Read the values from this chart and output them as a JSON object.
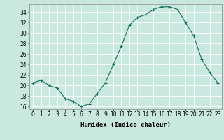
{
  "x": [
    0,
    1,
    2,
    3,
    4,
    5,
    6,
    7,
    8,
    9,
    10,
    11,
    12,
    13,
    14,
    15,
    16,
    17,
    18,
    19,
    20,
    21,
    22,
    23
  ],
  "y": [
    20.5,
    21.0,
    20.0,
    19.5,
    17.5,
    17.0,
    16.0,
    16.5,
    18.5,
    20.5,
    24.0,
    27.5,
    31.5,
    33.0,
    33.5,
    34.5,
    35.0,
    35.0,
    34.5,
    32.0,
    29.5,
    25.0,
    22.5,
    20.5
  ],
  "line_color": "#1a6b5a",
  "marker": "+",
  "bg_color": "#c8e8e0",
  "grid_color": "#ffffff",
  "xlabel": "Humidex (Indice chaleur)",
  "ylim": [
    15.5,
    35.5
  ],
  "yticks": [
    16,
    18,
    20,
    22,
    24,
    26,
    28,
    30,
    32,
    34
  ],
  "xticks": [
    0,
    1,
    2,
    3,
    4,
    5,
    6,
    7,
    8,
    9,
    10,
    11,
    12,
    13,
    14,
    15,
    16,
    17,
    18,
    19,
    20,
    21,
    22,
    23
  ],
  "tick_fontsize": 5.5,
  "label_fontsize": 6.5
}
